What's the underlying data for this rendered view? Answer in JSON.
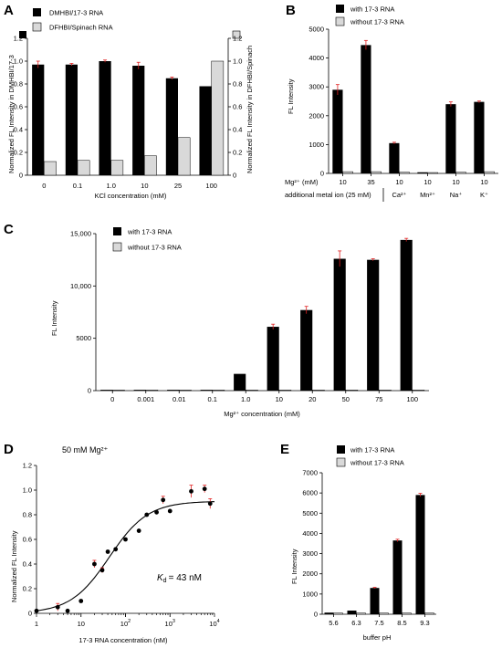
{
  "colors": {
    "black_bar": "#000000",
    "gray_bar": "#d9d9d9",
    "error": "#e02020",
    "axis": "#000000"
  },
  "chart_data": [
    {
      "panel": "A",
      "type": "bar",
      "categories": [
        "0",
        "0.1",
        "1.0",
        "10",
        "25",
        "100"
      ],
      "series": [
        {
          "name": "DMHBI/17-3 RNA",
          "values": [
            0.97,
            0.97,
            1.0,
            0.96,
            0.85,
            0.78
          ],
          "errors": [
            0.03,
            0.01,
            0.01,
            0.03,
            0.01,
            0.0
          ],
          "color": "#000000",
          "axis": "left"
        },
        {
          "name": "DFHBI/Spinach RNA",
          "values": [
            0.12,
            0.13,
            0.13,
            0.17,
            0.33,
            1.0
          ],
          "errors": [
            0.0,
            0.0,
            0.0,
            0.0,
            0.0,
            0.0
          ],
          "color": "#d9d9d9",
          "axis": "right"
        }
      ],
      "xlabel": "KCl concentration (mM)",
      "ylabel": "Normalized FL Intensity in DMHBI/17-3",
      "y2label": "Normalized FL Intensity in DFHBI/Spinach",
      "ylim": [
        0,
        1.2
      ],
      "yticks": [
        "0",
        "0.2",
        "0.4",
        "0.6",
        "0.8",
        "1.0",
        "1.2"
      ]
    },
    {
      "panel": "B",
      "type": "bar",
      "categories": [
        "10",
        "35",
        "10",
        "10",
        "10",
        "10"
      ],
      "row1_label": "Mg²⁺ (mM)",
      "row2_label": "additional metal ion (25 mM)",
      "ions": [
        "Ca²⁺",
        "Mn²⁺",
        "Na⁺",
        "K⁺"
      ],
      "series": [
        {
          "name": "with 17-3 RNA",
          "values": [
            2900,
            4450,
            1050,
            40,
            2400,
            2480
          ],
          "errors": [
            180,
            160,
            30,
            0,
            80,
            30
          ],
          "color": "#000000"
        },
        {
          "name": "without 17-3 RNA",
          "values": [
            60,
            60,
            40,
            30,
            40,
            60
          ],
          "errors": [
            0,
            0,
            0,
            0,
            0,
            0
          ],
          "color": "#d9d9d9"
        }
      ],
      "ylabel": "FL Intensity",
      "ylim": [
        0,
        5000
      ],
      "yticks": [
        "0",
        "1000",
        "2000",
        "3000",
        "4000",
        "5000"
      ]
    },
    {
      "panel": "C",
      "type": "bar",
      "categories": [
        "0",
        "0.001",
        "0.01",
        "0.1",
        "1.0",
        "10",
        "20",
        "50",
        "75",
        "100"
      ],
      "series": [
        {
          "name": "with 17-3 RNA",
          "values": [
            80,
            80,
            80,
            80,
            1600,
            6100,
            7700,
            12600,
            12500,
            14400
          ],
          "errors": [
            0,
            0,
            0,
            0,
            0,
            250,
            350,
            750,
            100,
            150
          ],
          "color": "#000000"
        },
        {
          "name": "without 17-3 RNA",
          "values": [
            60,
            60,
            60,
            60,
            60,
            60,
            60,
            60,
            60,
            60
          ],
          "errors": [
            0,
            0,
            0,
            0,
            0,
            0,
            0,
            0,
            0,
            0
          ],
          "color": "#d9d9d9"
        }
      ],
      "xlabel": "Mg²⁺ concentration (mM)",
      "ylabel": "FL Intensity",
      "ylim": [
        0,
        15000
      ],
      "yticks": [
        "0",
        "5000",
        "10,000",
        "15,000"
      ]
    },
    {
      "panel": "D",
      "type": "scatter",
      "scale_x": "log",
      "annotation": "50 mM Mg²⁺",
      "kd_label": "= 43 nM",
      "kd_symbol": "K",
      "kd_sub": "d",
      "x": [
        1,
        3,
        5,
        10,
        20,
        30,
        40,
        60,
        100,
        200,
        300,
        500,
        700,
        1000,
        3000,
        6000,
        8000
      ],
      "y": [
        0.02,
        0.05,
        0.02,
        0.1,
        0.4,
        0.35,
        0.5,
        0.52,
        0.6,
        0.67,
        0.8,
        0.82,
        0.92,
        0.83,
        0.99,
        1.01,
        0.89
      ],
      "errors": [
        0.0,
        0.03,
        0.0,
        0.0,
        0.03,
        0.02,
        0.0,
        0.0,
        0.0,
        0.0,
        0.0,
        0.0,
        0.03,
        0.0,
        0.05,
        0.03,
        0.04
      ],
      "fit": {
        "model": "hill",
        "kd": 43,
        "top": 0.91
      },
      "xlabel": "17-3 RNA concentration (nM)",
      "ylabel": "Normalized FL Intensity",
      "xlim": [
        1,
        10000
      ],
      "ylim": [
        0,
        1.2
      ],
      "yticks": [
        "0",
        "0.2",
        "0.4",
        "0.6",
        "0.8",
        "1.0",
        "1.2"
      ],
      "xticks_base": "10",
      "xtick_labels": [
        {
          "x": 1,
          "text": "1",
          "exp": ""
        },
        {
          "x": 10,
          "text": "10",
          "exp": ""
        },
        {
          "x": 100,
          "text": "10",
          "exp": "2"
        },
        {
          "x": 1000,
          "text": "10",
          "exp": "3"
        },
        {
          "x": 10000,
          "text": "10",
          "exp": "4"
        }
      ]
    },
    {
      "panel": "E",
      "type": "bar",
      "categories": [
        "5.6",
        "6.3",
        "7.5",
        "8.5",
        "9.3"
      ],
      "series": [
        {
          "name": "with 17-3 RNA",
          "values": [
            80,
            180,
            1300,
            3650,
            5900
          ],
          "errors": [
            0,
            0,
            30,
            60,
            80
          ],
          "color": "#000000"
        },
        {
          "name": "without 17-3 RNA",
          "values": [
            60,
            60,
            60,
            60,
            60
          ],
          "errors": [
            0,
            0,
            0,
            0,
            0
          ],
          "color": "#d9d9d9"
        }
      ],
      "xlabel": "buffer pH",
      "ylabel": "FL Intensity",
      "ylim": [
        0,
        7000
      ],
      "yticks": [
        "0",
        "1000",
        "2000",
        "3000",
        "4000",
        "5000",
        "6000",
        "7000"
      ]
    }
  ]
}
